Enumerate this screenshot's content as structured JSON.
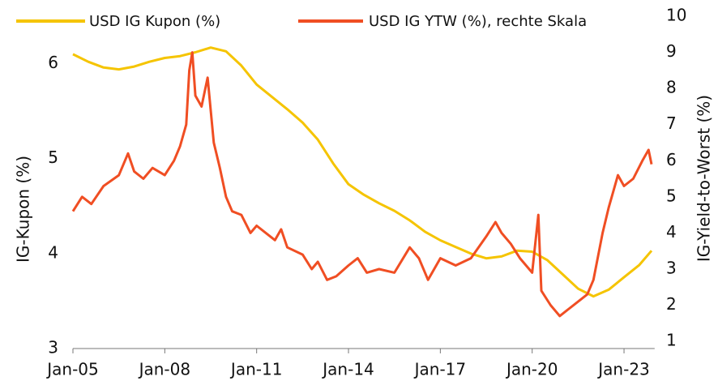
{
  "chart_data": {
    "type": "line",
    "y_label": "IG-Kupon (%)",
    "y2_label": "IG-Yield-to-Worst (%)",
    "xlim": [
      2005,
      2024
    ],
    "xticks": [
      {
        "value": 2005,
        "label": "Jan-05"
      },
      {
        "value": 2008,
        "label": "Jan-08"
      },
      {
        "value": 2011,
        "label": "Jan-11"
      },
      {
        "value": 2014,
        "label": "Jan-14"
      },
      {
        "value": 2017,
        "label": "Jan-17"
      },
      {
        "value": 2020,
        "label": "Jan-20"
      },
      {
        "value": 2023,
        "label": "Jan-23"
      }
    ],
    "ylim": [
      3,
      6.5
    ],
    "yticks": [
      3,
      4,
      5,
      6
    ],
    "y2lim": [
      0.8,
      10
    ],
    "y2ticks": [
      1,
      2,
      3,
      4,
      5,
      6,
      7,
      8,
      9,
      10
    ],
    "series": [
      {
        "name": "USD IG Kupon (%)",
        "color": "#f5c400",
        "axis": "y",
        "x": [
          2005,
          2005.5,
          2006,
          2006.5,
          2007,
          2007.5,
          2008,
          2008.5,
          2009,
          2009.5,
          2010,
          2010.5,
          2011,
          2011.5,
          2012,
          2012.5,
          2013,
          2013.5,
          2014,
          2014.5,
          2015,
          2015.5,
          2016,
          2016.5,
          2017,
          2017.5,
          2018,
          2018.5,
          2019,
          2019.5,
          2020,
          2020.5,
          2021,
          2021.5,
          2022,
          2022.5,
          2023,
          2023.5,
          2023.9
        ],
        "values": [
          6.1,
          6.02,
          5.96,
          5.94,
          5.97,
          6.02,
          6.06,
          6.08,
          6.12,
          6.17,
          6.13,
          5.98,
          5.78,
          5.65,
          5.52,
          5.38,
          5.2,
          4.95,
          4.73,
          4.62,
          4.53,
          4.45,
          4.35,
          4.23,
          4.14,
          4.07,
          4.0,
          3.95,
          3.97,
          4.03,
          4.02,
          3.93,
          3.78,
          3.63,
          3.55,
          3.62,
          3.75,
          3.88,
          4.03
        ]
      },
      {
        "name": "USD IG YTW (%), rechte Skala",
        "color": "#f04e23",
        "axis": "y2",
        "x": [
          2005,
          2005.3,
          2005.6,
          2006,
          2006.5,
          2006.8,
          2007,
          2007.3,
          2007.6,
          2008,
          2008.3,
          2008.5,
          2008.7,
          2008.8,
          2008.9,
          2009.0,
          2009.2,
          2009.4,
          2009.6,
          2009.8,
          2010,
          2010.2,
          2010.5,
          2010.8,
          2011,
          2011.3,
          2011.6,
          2011.8,
          2012,
          2012.5,
          2012.8,
          2013,
          2013.3,
          2013.6,
          2014,
          2014.3,
          2014.6,
          2015,
          2015.5,
          2016,
          2016.3,
          2016.6,
          2017,
          2017.5,
          2018,
          2018.5,
          2018.8,
          2019,
          2019.3,
          2019.6,
          2020.0,
          2020.2,
          2020.3,
          2020.6,
          2020.9,
          2021.2,
          2021.5,
          2021.8,
          2022,
          2022.3,
          2022.5,
          2022.8,
          2023,
          2023.3,
          2023.6,
          2023.8,
          2023.9
        ],
        "values": [
          4.6,
          5.0,
          4.8,
          5.3,
          5.6,
          6.2,
          5.7,
          5.5,
          5.8,
          5.6,
          6.0,
          6.4,
          7.0,
          8.5,
          9.0,
          7.8,
          7.5,
          8.3,
          6.5,
          5.8,
          5.0,
          4.6,
          4.5,
          4.0,
          4.2,
          4.0,
          3.8,
          4.1,
          3.6,
          3.4,
          3.0,
          3.2,
          2.7,
          2.8,
          3.1,
          3.3,
          2.9,
          3.0,
          2.9,
          3.6,
          3.3,
          2.7,
          3.3,
          3.1,
          3.3,
          3.9,
          4.3,
          4.0,
          3.7,
          3.3,
          2.9,
          4.5,
          2.4,
          2.0,
          1.7,
          1.9,
          2.1,
          2.3,
          2.7,
          4.0,
          4.7,
          5.6,
          5.3,
          5.5,
          6.0,
          6.3,
          5.9
        ]
      }
    ]
  }
}
